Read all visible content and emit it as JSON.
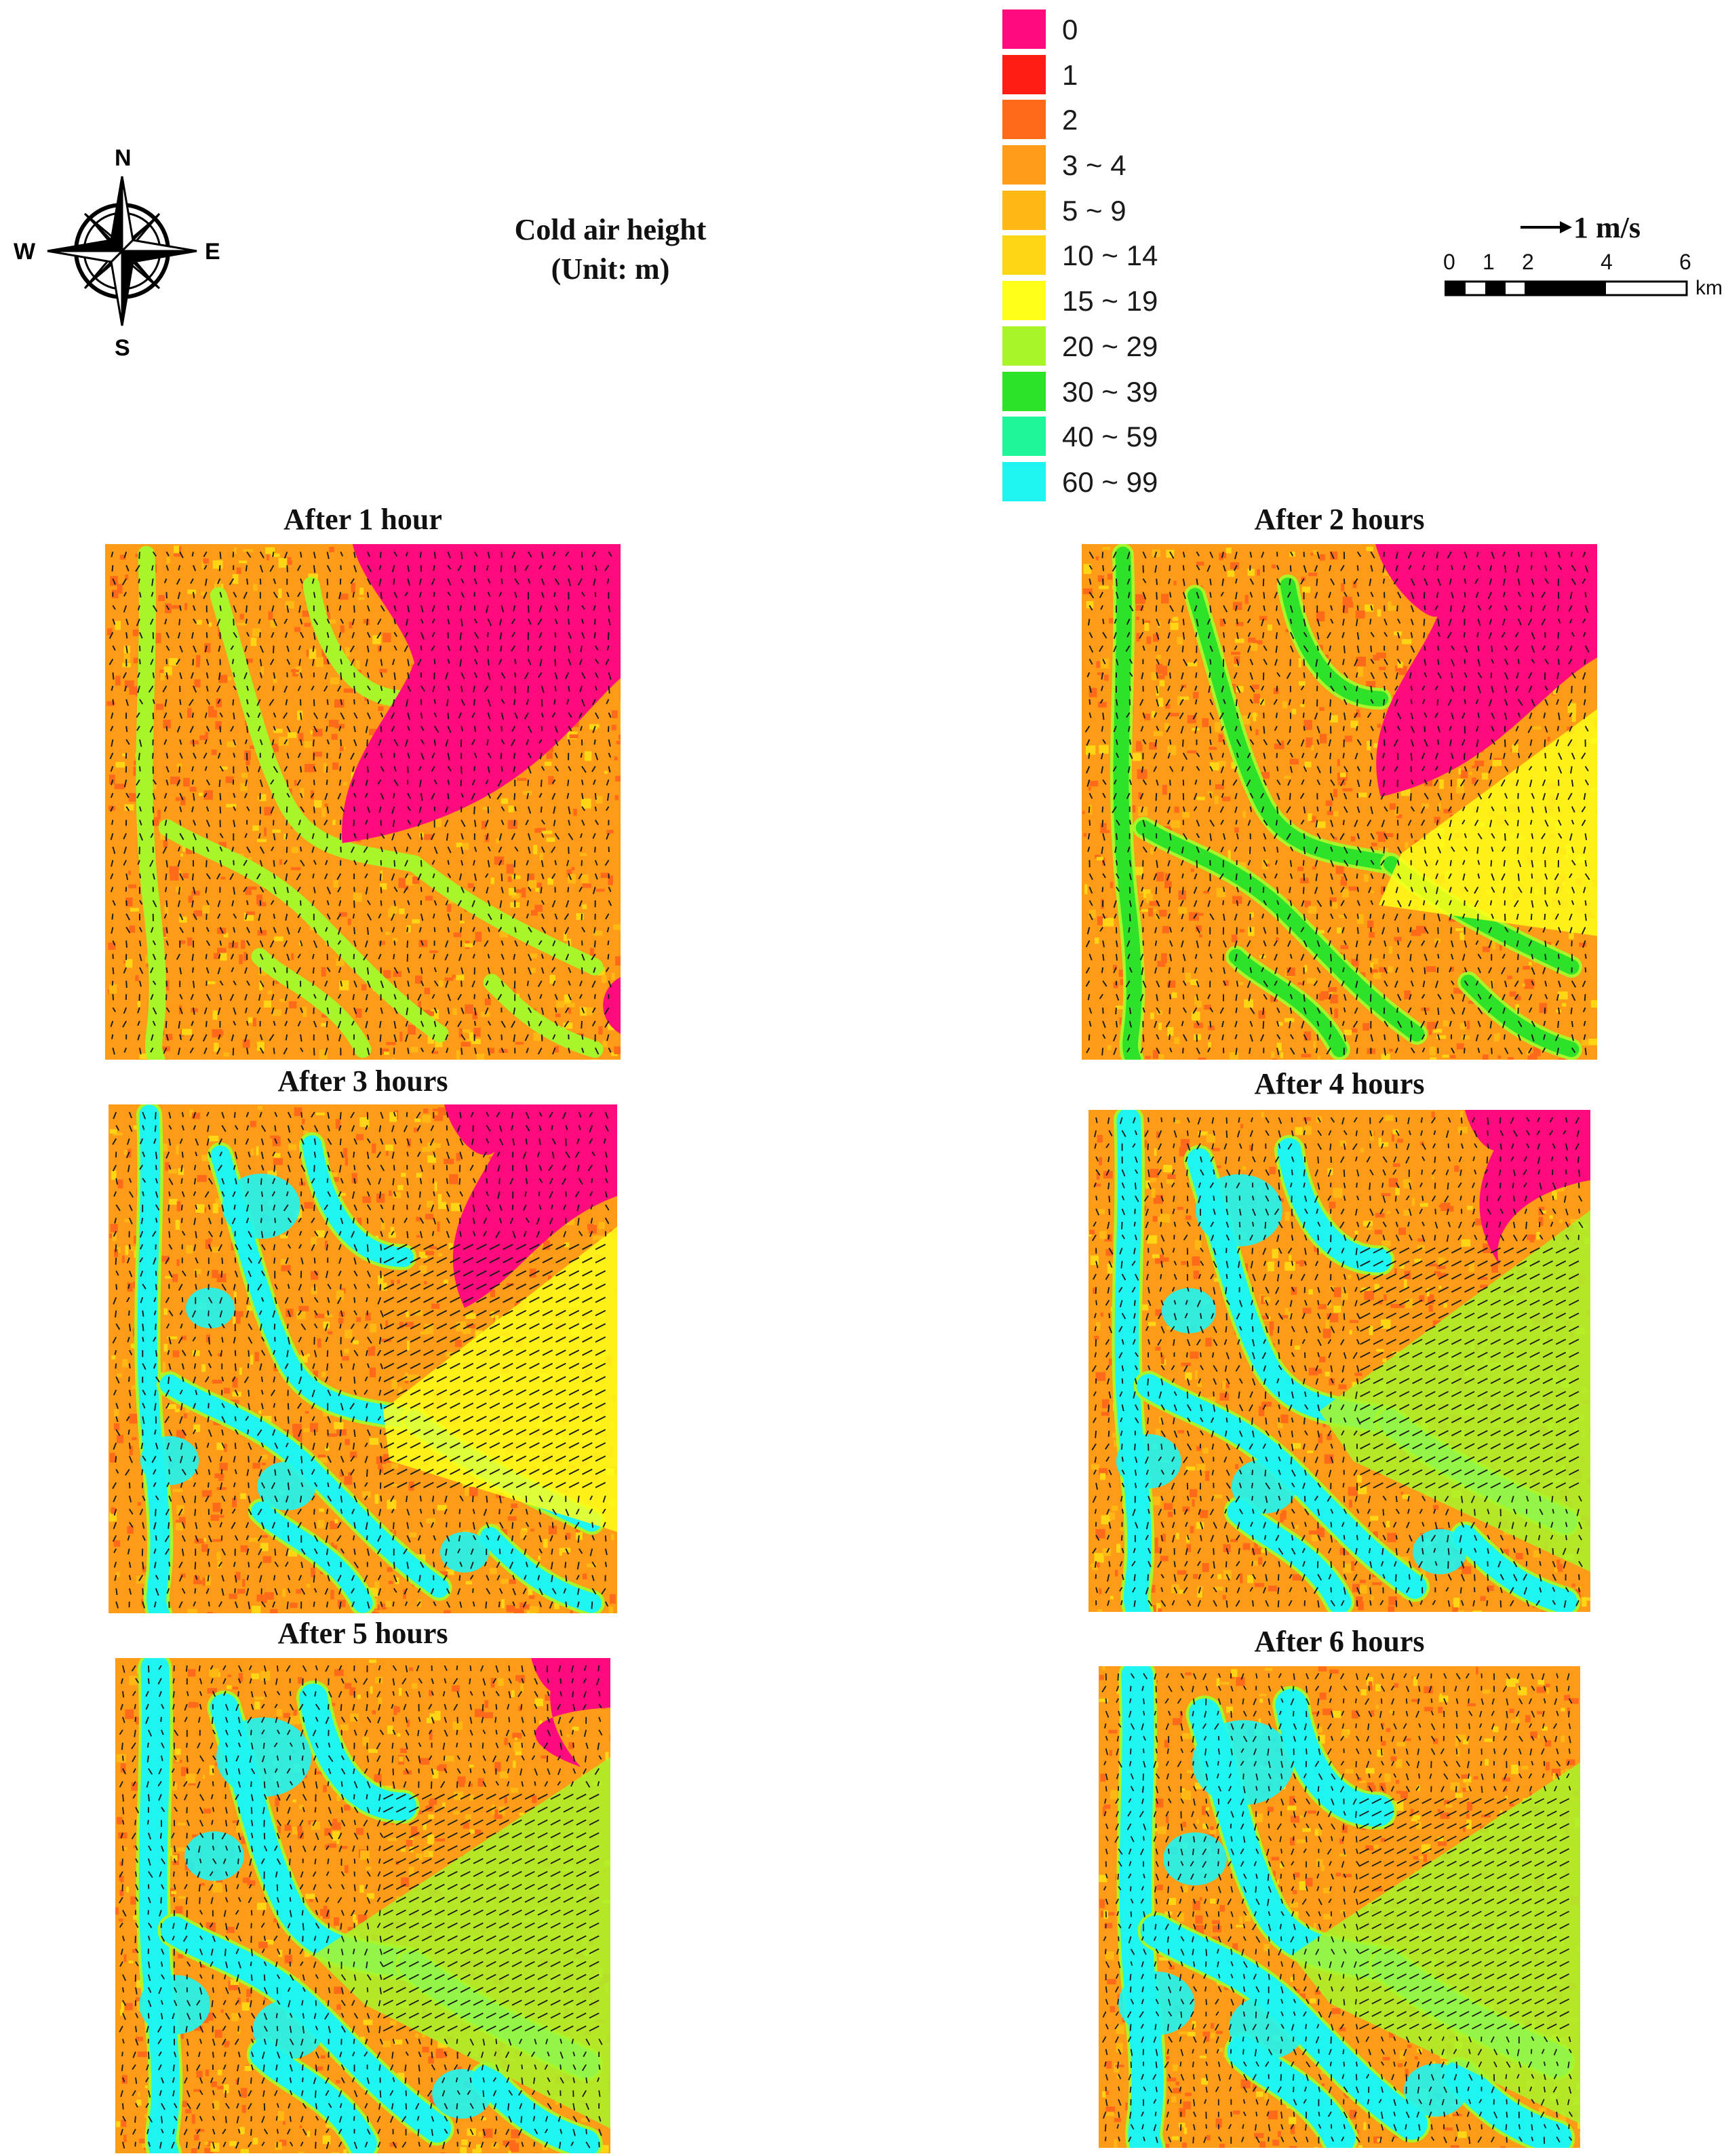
{
  "compass": {
    "n": "N",
    "s": "S",
    "e": "E",
    "w": "W"
  },
  "title": {
    "line1": "Cold air height",
    "line2": "(Unit: m)"
  },
  "legend": [
    {
      "label": "0",
      "color": "#ff0b7d"
    },
    {
      "label": "1",
      "color": "#ff1c14"
    },
    {
      "label": "2",
      "color": "#ff6a1a"
    },
    {
      "label": "3 ~ 4",
      "color": "#ff9c17"
    },
    {
      "label": "5 ~ 9",
      "color": "#ffb814"
    },
    {
      "label": "10 ~ 14",
      "color": "#ffd615"
    },
    {
      "label": "15 ~ 19",
      "color": "#ffff19"
    },
    {
      "label": "20 ~ 29",
      "color": "#a8f52a"
    },
    {
      "label": "30 ~ 39",
      "color": "#2ee22a"
    },
    {
      "label": "40 ~ 59",
      "color": "#1ef59a"
    },
    {
      "label": "60 ~ 99",
      "color": "#1ef5f2"
    }
  ],
  "scale": {
    "vector_label": "1 m/s",
    "ticks": [
      "0",
      "1",
      "2",
      "4",
      "6"
    ],
    "unit": "km"
  },
  "panels": [
    {
      "title": "After 1 hour",
      "flood": 1
    },
    {
      "title": "After 2 hours",
      "flood": 2
    },
    {
      "title": "After 3 hours",
      "flood": 3
    },
    {
      "title": "After 4 hours",
      "flood": 4
    },
    {
      "title": "After 5 hours",
      "flood": 5
    },
    {
      "title": "After 6 hours",
      "flood": 6
    }
  ]
}
